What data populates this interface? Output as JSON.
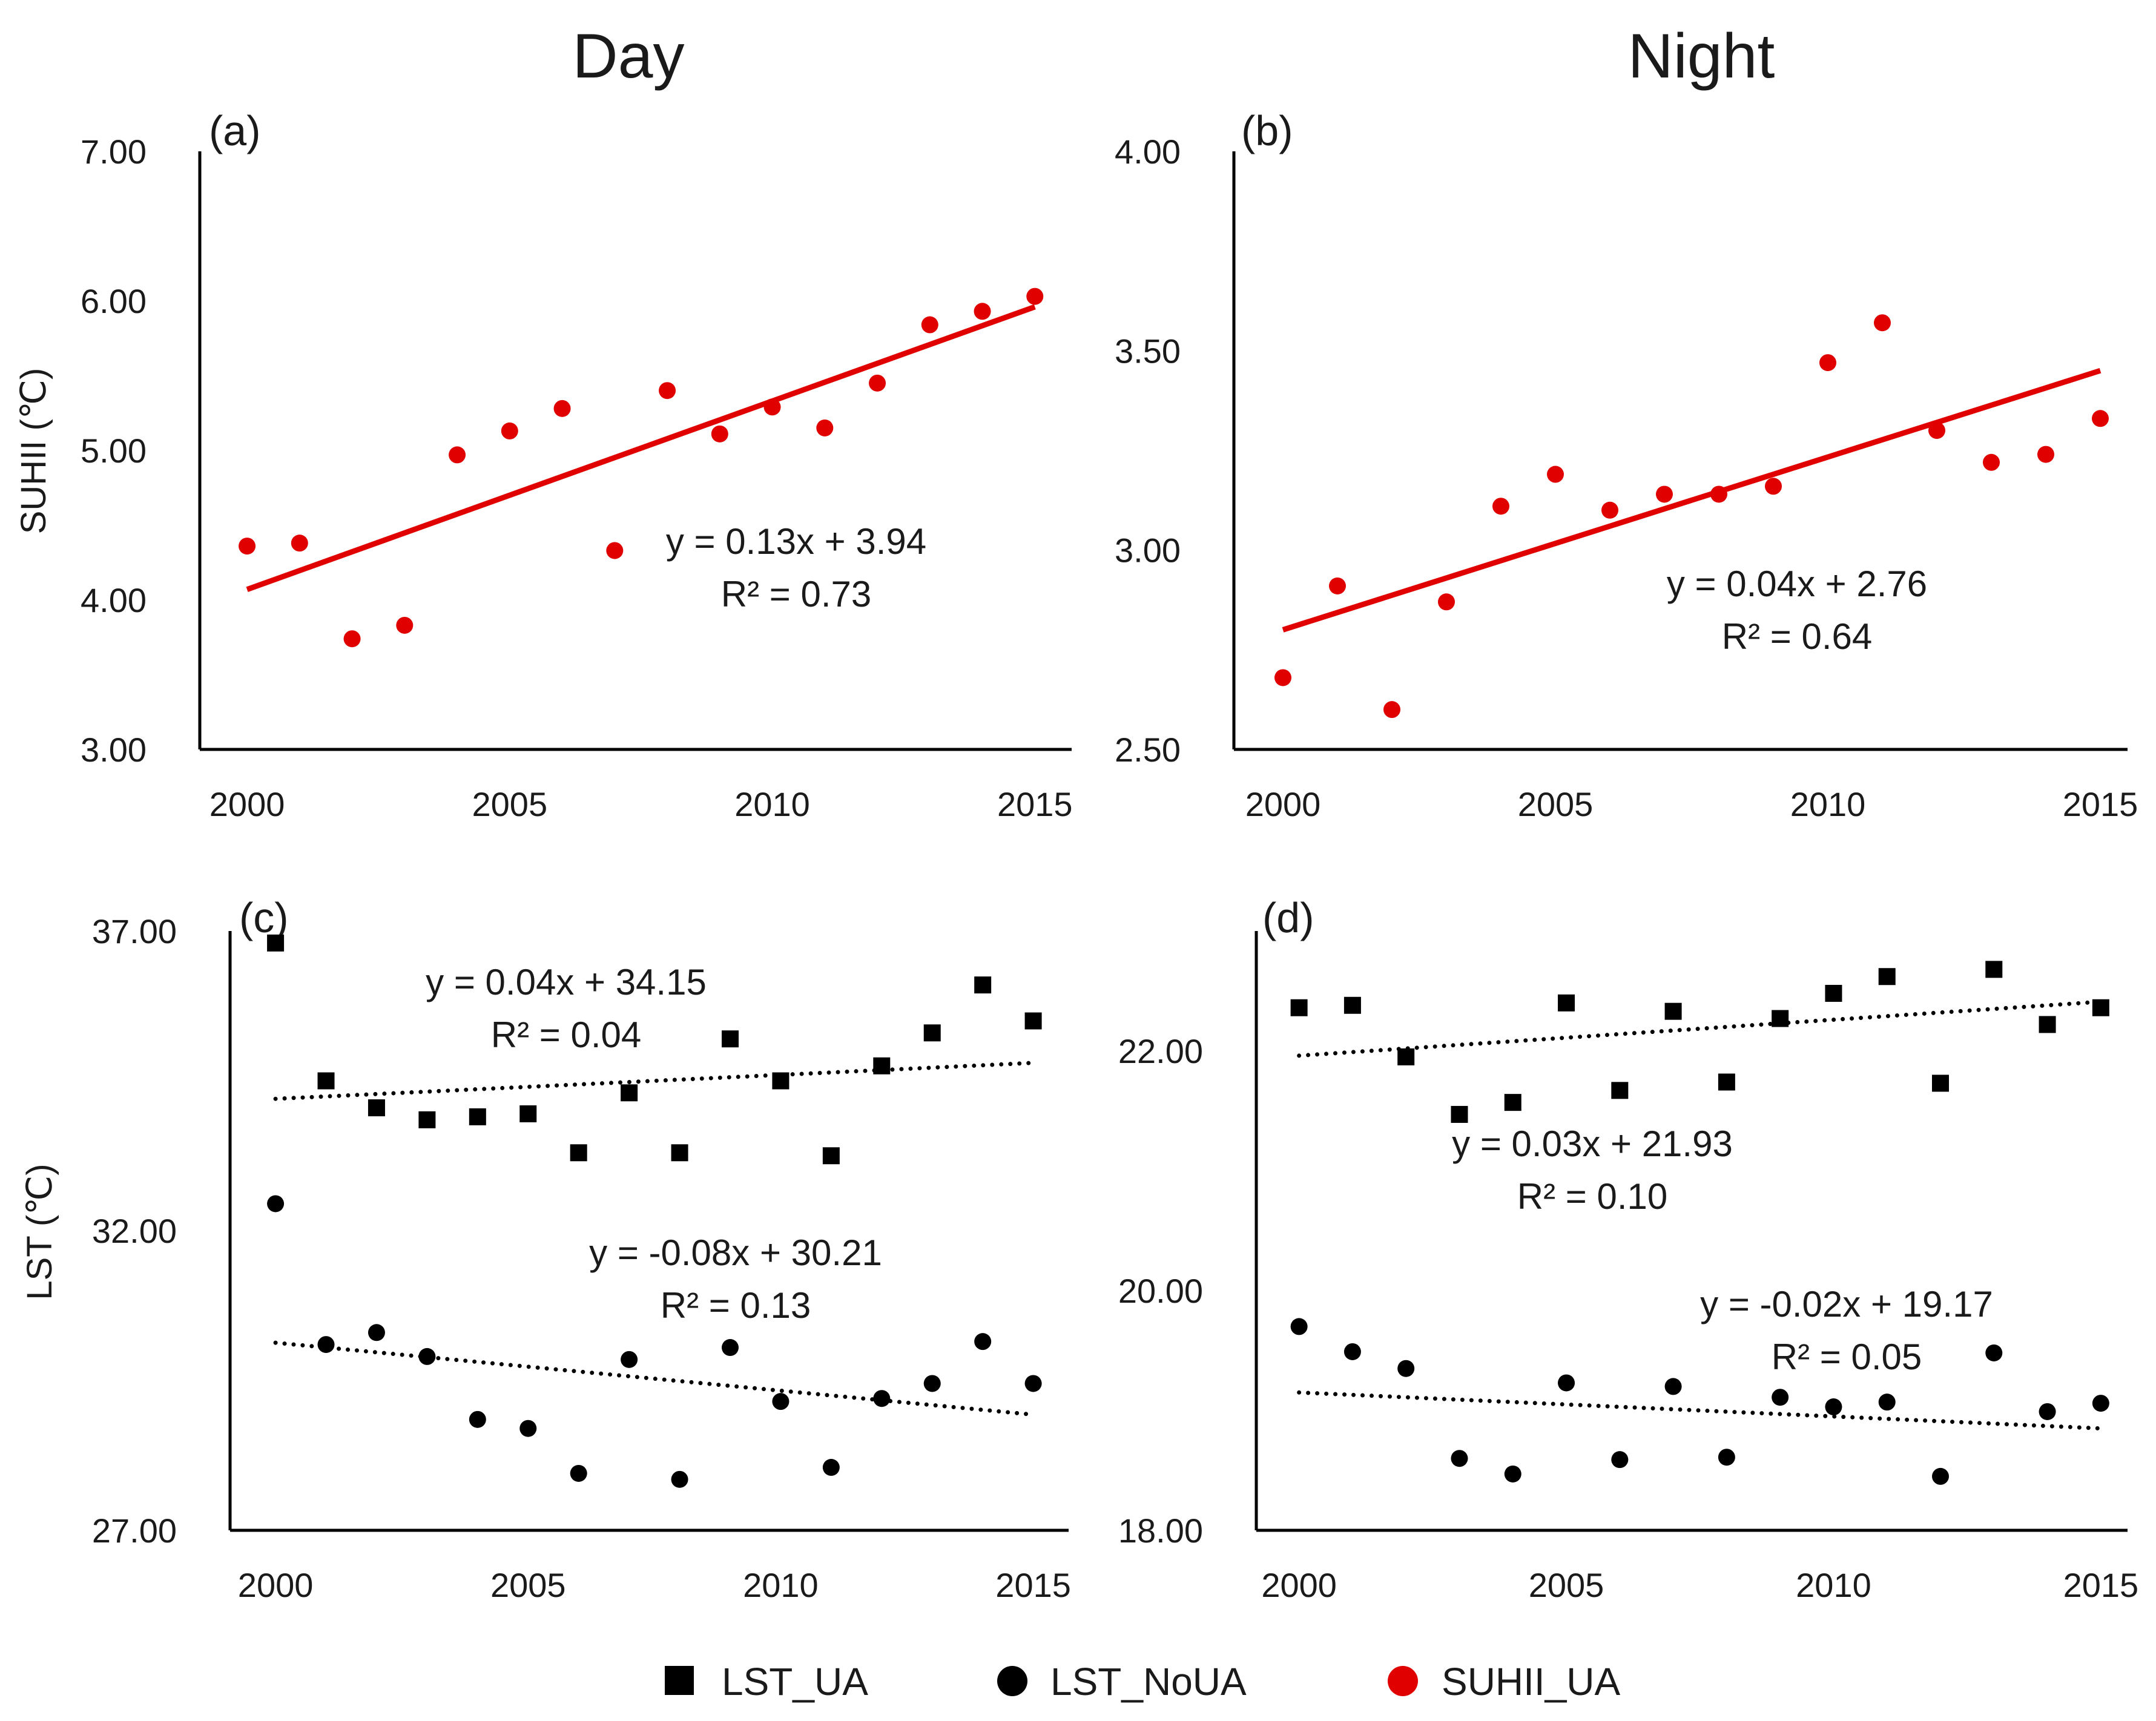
{
  "figure": {
    "col_titles": [
      "Day",
      "Night"
    ],
    "legend": [
      {
        "label": "LST_UA",
        "marker": "square",
        "color": "#000000"
      },
      {
        "label": "LST_NoUA",
        "marker": "circle",
        "color": "#000000"
      },
      {
        "label": "SUHII_UA",
        "marker": "circle",
        "color": "#e00000"
      }
    ]
  },
  "chart_data": [
    {
      "panel": "(a)",
      "type": "scatter",
      "ylabel": "SUHII (℃)",
      "xlim": [
        1999.1,
        2015.7
      ],
      "ylim": [
        3.0,
        7.0
      ],
      "xticks": [
        2000,
        2005,
        2010,
        2015
      ],
      "yticks": [
        "3.00",
        "4.00",
        "5.00",
        "6.00",
        "7.00"
      ],
      "series": [
        {
          "legend_ref": "SUHII_UA",
          "marker": "circle",
          "color": "#e00000",
          "x": [
            2000,
            2001,
            2002,
            2003,
            2004,
            2005,
            2006,
            2007,
            2008,
            2009,
            2010,
            2011,
            2012,
            2013,
            2014,
            2015
          ],
          "y": [
            4.36,
            4.38,
            3.74,
            3.83,
            4.97,
            5.13,
            5.28,
            4.33,
            5.4,
            5.11,
            5.29,
            5.15,
            5.45,
            5.84,
            5.93,
            6.03
          ],
          "trend": {
            "style": "solid",
            "x": [
              2000,
              2015
            ],
            "y": [
              4.07,
              5.96
            ]
          },
          "equation": "y = 0.13x + 3.94",
          "r2": "R² = 0.73"
        }
      ]
    },
    {
      "panel": "(b)",
      "type": "scatter",
      "ylabel": "",
      "xlim": [
        1999.1,
        2015.5
      ],
      "ylim": [
        2.5,
        4.0
      ],
      "xticks": [
        2000,
        2005,
        2010,
        2015
      ],
      "yticks": [
        "2.50",
        "3.00",
        "3.50",
        "4.00"
      ],
      "series": [
        {
          "legend_ref": "SUHII_UA",
          "marker": "circle",
          "color": "#e00000",
          "x": [
            2000,
            2001,
            2002,
            2003,
            2004,
            2005,
            2006,
            2007,
            2008,
            2009,
            2010,
            2011,
            2012,
            2013,
            2014,
            2015
          ],
          "y": [
            2.68,
            2.91,
            2.6,
            2.87,
            3.11,
            3.19,
            3.1,
            3.14,
            3.14,
            3.16,
            3.47,
            3.57,
            3.3,
            3.22,
            3.24,
            3.33
          ],
          "trend": {
            "style": "solid",
            "x": [
              2000,
              2015
            ],
            "y": [
              2.8,
              3.45
            ]
          },
          "equation": "y = 0.04x + 2.76",
          "r2": "R² = 0.64"
        }
      ]
    },
    {
      "panel": "(c)",
      "type": "scatter",
      "ylabel": "LST (℃)",
      "xlim": [
        1999.1,
        2015.7
      ],
      "ylim": [
        27.0,
        37.0
      ],
      "xticks": [
        2000,
        2005,
        2010,
        2015
      ],
      "yticks": [
        "27.00",
        "32.00",
        "37.00"
      ],
      "series": [
        {
          "legend_ref": "LST_UA",
          "marker": "square",
          "color": "#000000",
          "x": [
            2000,
            2001,
            2002,
            2003,
            2004,
            2005,
            2006,
            2007,
            2008,
            2009,
            2010,
            2011,
            2012,
            2013,
            2014,
            2015
          ],
          "y": [
            36.8,
            34.5,
            34.05,
            33.85,
            33.9,
            33.95,
            33.3,
            34.3,
            33.3,
            35.2,
            34.5,
            33.25,
            34.75,
            35.3,
            36.1,
            35.5
          ],
          "trend": {
            "style": "dotted",
            "x": [
              2000,
              2015
            ],
            "y": [
              34.2,
              34.8
            ]
          },
          "equation": "y = 0.04x + 34.15",
          "r2": "R² = 0.04"
        },
        {
          "legend_ref": "LST_NoUA",
          "marker": "circle",
          "color": "#000000",
          "x": [
            2000,
            2001,
            2002,
            2003,
            2004,
            2005,
            2006,
            2007,
            2008,
            2009,
            2010,
            2011,
            2012,
            2013,
            2014,
            2015
          ],
          "y": [
            32.45,
            30.1,
            30.3,
            29.9,
            28.85,
            28.7,
            27.95,
            29.85,
            27.85,
            30.05,
            29.15,
            28.05,
            29.2,
            29.45,
            30.15,
            29.45
          ],
          "trend": {
            "style": "dotted",
            "x": [
              2000,
              2015
            ],
            "y": [
              30.13,
              28.93
            ]
          },
          "equation": "y = -0.08x + 30.21",
          "r2": "R² = 0.13"
        }
      ]
    },
    {
      "panel": "(d)",
      "type": "scatter",
      "ylabel": "",
      "xlim": [
        1999.2,
        2015.5
      ],
      "ylim": [
        18.0,
        23.0
      ],
      "xticks": [
        2000,
        2005,
        2010,
        2015
      ],
      "yticks": [
        "18.00",
        "20.00",
        "22.00"
      ],
      "series": [
        {
          "legend_ref": "LST_UA",
          "marker": "square",
          "color": "#000000",
          "x": [
            2000,
            2001,
            2002,
            2003,
            2004,
            2005,
            2006,
            2007,
            2008,
            2009,
            2010,
            2011,
            2012,
            2013,
            2014,
            2015
          ],
          "y": [
            22.36,
            22.38,
            21.95,
            21.47,
            21.57,
            22.4,
            21.67,
            22.33,
            21.74,
            22.27,
            22.48,
            22.62,
            21.73,
            22.68,
            22.22,
            22.36
          ],
          "trend": {
            "style": "dotted",
            "x": [
              2000,
              2015
            ],
            "y": [
              21.96,
              22.41
            ]
          },
          "equation": "y = 0.03x + 21.93",
          "r2": "R² = 0.10"
        },
        {
          "legend_ref": "LST_NoUA",
          "marker": "circle",
          "color": "#000000",
          "x": [
            2000,
            2001,
            2002,
            2003,
            2004,
            2005,
            2006,
            2007,
            2008,
            2009,
            2010,
            2011,
            2012,
            2013,
            2014,
            2015
          ],
          "y": [
            19.7,
            19.49,
            19.35,
            18.6,
            18.47,
            19.23,
            18.59,
            19.2,
            18.61,
            19.11,
            19.03,
            19.07,
            18.45,
            19.48,
            18.99,
            19.06
          ],
          "trend": {
            "style": "dotted",
            "x": [
              2000,
              2015
            ],
            "y": [
              19.15,
              18.85
            ]
          },
          "equation": "y = -0.02x + 19.17",
          "r2": "R² = 0.05"
        }
      ]
    }
  ]
}
